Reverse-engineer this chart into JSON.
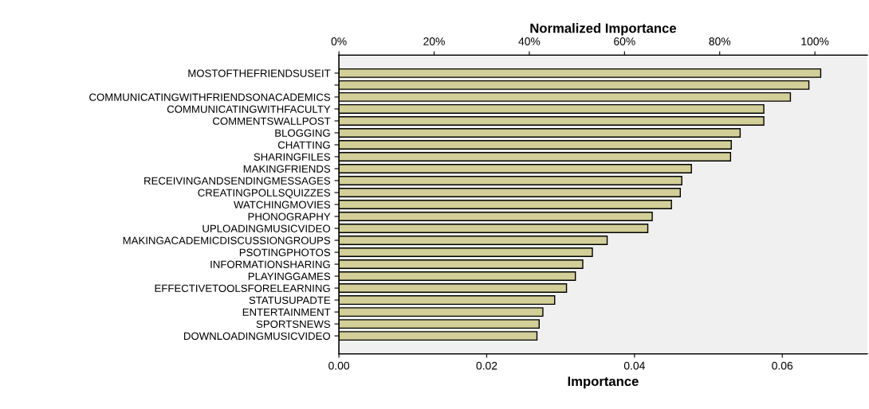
{
  "chart_data": {
    "type": "bar",
    "orientation": "horizontal",
    "xlabel": "Importance",
    "x2label": "Normalized Importance",
    "categories": [
      "MOSTOFTHEFRIENDSUSEIT",
      null,
      "COMMUNICATINGWITHFRIENDSONACADEMICS",
      "COMMUNICATINGWITHFACULTY",
      "COMMENTSWALLPOST",
      "BLOGGING",
      "CHATTING",
      "SHARINGFILES",
      "MAKINGFRIENDS",
      "RECEIVINGANDSENDINGMESSAGES",
      "CREATINGPOLLSQUIZZES",
      "WATCHINGMOVIES",
      "PHONOGRAPHY",
      "UPLOADINGMUSICVIDEO",
      "MAKINGACADEMICDISCUSSIONGROUPS",
      "PSOTINGPHOTOS",
      "INFORMATIONSHARING",
      "PLAYINGGAMES",
      "EFFECTIVETOOLSFORELEARNING",
      "STATUSUPADTE",
      "ENTERTAINMENT",
      "SPORTSNEWS",
      "DOWNLOADINGMUSICVIDEO"
    ],
    "values": [
      0.0652,
      0.0636,
      0.0611,
      0.0575,
      0.0575,
      0.0543,
      0.0531,
      0.053,
      0.0477,
      0.0464,
      0.0462,
      0.045,
      0.0424,
      0.0418,
      0.0363,
      0.0343,
      0.033,
      0.032,
      0.0308,
      0.0292,
      0.0276,
      0.0271,
      0.0268
    ],
    "color": "#d3cf98",
    "xlim": [
      0,
      0.0715
    ],
    "xticks": [
      {
        "value": 0,
        "label": "0.00"
      },
      {
        "value": 0.02,
        "label": "0.02"
      },
      {
        "value": 0.04,
        "label": "0.04"
      },
      {
        "value": 0.06,
        "label": "0.06"
      }
    ],
    "x2lim": [
      0,
      111
    ],
    "x2ticks": [
      {
        "value": 0,
        "label": "0%"
      },
      {
        "value": 20,
        "label": "20%"
      },
      {
        "value": 40,
        "label": "40%"
      },
      {
        "value": 60,
        "label": "60%"
      },
      {
        "value": 80,
        "label": "80%"
      },
      {
        "value": 100,
        "label": "100%"
      }
    ],
    "grid": false,
    "legend": false
  }
}
